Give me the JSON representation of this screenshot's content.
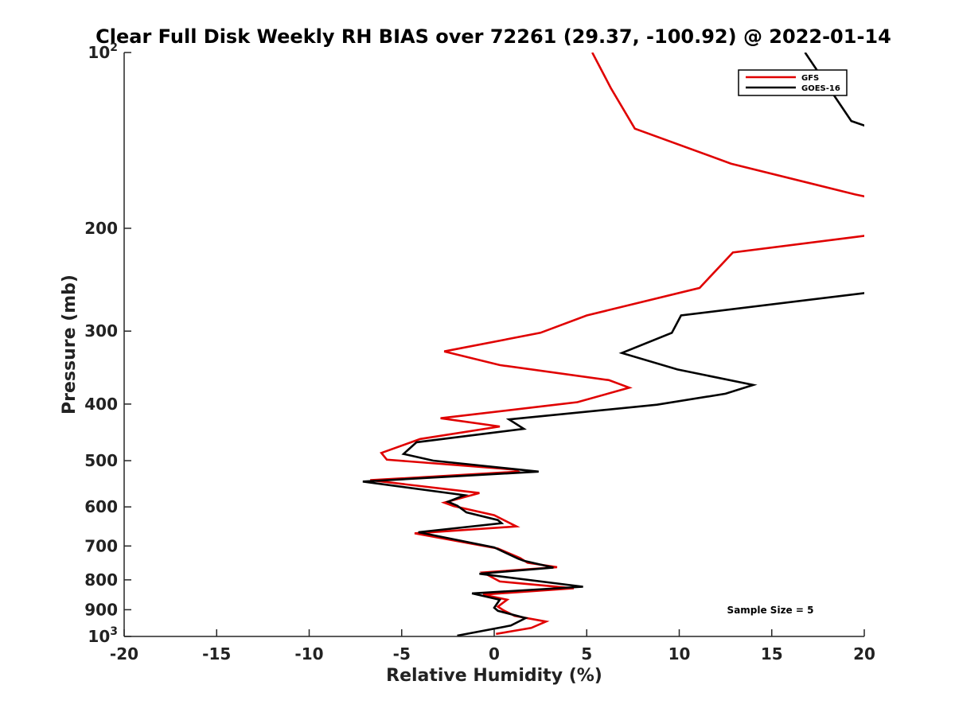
{
  "chart_data": {
    "type": "line",
    "title": "Clear Full Disk Weekly RH BIAS over 72261 (29.37, -100.92) @ 2022-01-14",
    "xlabel": "Relative Humidity (%)",
    "ylabel": "Pressure (mb)",
    "xlim": [
      -20,
      20
    ],
    "ylim": [
      100,
      1000
    ],
    "y_scale": "log",
    "y_reversed": true,
    "grid": false,
    "legend_position": "top-right",
    "x_ticks": [
      "-20",
      "-15",
      "-10",
      "-5",
      "0",
      "5",
      "10",
      "15",
      "20"
    ],
    "x_tick_values": [
      -20,
      -15,
      -10,
      -5,
      0,
      5,
      10,
      15,
      20
    ],
    "y_ticks": [
      {
        "value": 100,
        "base": "10",
        "exp": "2"
      },
      {
        "value": 200,
        "label": "200"
      },
      {
        "value": 300,
        "label": "300"
      },
      {
        "value": 400,
        "label": "400"
      },
      {
        "value": 500,
        "label": "500"
      },
      {
        "value": 600,
        "label": "600"
      },
      {
        "value": 700,
        "label": "700"
      },
      {
        "value": 800,
        "label": "800"
      },
      {
        "value": 900,
        "label": "900"
      },
      {
        "value": 1000,
        "base": "10",
        "exp": "3"
      }
    ],
    "annotation": "Sample Size = 5",
    "series": [
      {
        "name": "GFS",
        "color": "#e00000",
        "points": [
          [
            5.3,
            100
          ],
          [
            6.3,
            115
          ],
          [
            7.6,
            135
          ],
          [
            12.8,
            155
          ],
          [
            19.5,
            175
          ],
          [
            20.6,
            178
          ],
          [
            20.6,
            205
          ],
          [
            19.5,
            207
          ],
          [
            12.9,
            220
          ],
          [
            11.1,
            253
          ],
          [
            5.0,
            282
          ],
          [
            2.5,
            302
          ],
          [
            -2.7,
            325
          ],
          [
            0.3,
            343
          ],
          [
            6.2,
            364
          ],
          [
            7.3,
            375
          ],
          [
            4.5,
            397
          ],
          [
            -2.9,
            423
          ],
          [
            0.3,
            437
          ],
          [
            -4.0,
            459
          ],
          [
            -6.1,
            485
          ],
          [
            -5.8,
            498
          ],
          [
            1.1,
            518
          ],
          [
            1.3,
            522
          ],
          [
            -6.7,
            540
          ],
          [
            -0.8,
            568
          ],
          [
            -2.7,
            590
          ],
          [
            -2.2,
            598
          ],
          [
            0.0,
            620
          ],
          [
            1.2,
            648
          ],
          [
            -4.3,
            666
          ],
          [
            0.2,
            707
          ],
          [
            1.4,
            734
          ],
          [
            1.8,
            748
          ],
          [
            3.4,
            761
          ],
          [
            -0.6,
            777
          ],
          [
            0.3,
            805
          ],
          [
            4.3,
            827
          ],
          [
            -0.6,
            848
          ],
          [
            0.7,
            865
          ],
          [
            0.2,
            889
          ],
          [
            0.5,
            902
          ],
          [
            1.1,
            922
          ],
          [
            2.8,
            943
          ],
          [
            2.0,
            967
          ],
          [
            0.1,
            990
          ]
        ]
      },
      {
        "name": "GOES-16",
        "color": "#000000",
        "points": [
          [
            16.8,
            100
          ],
          [
            19.3,
            131
          ],
          [
            20.2,
            134
          ],
          [
            20.1,
            258
          ],
          [
            10.1,
            282
          ],
          [
            9.6,
            302
          ],
          [
            6.9,
            327
          ],
          [
            9.9,
            349
          ],
          [
            14.0,
            371
          ],
          [
            12.5,
            384
          ],
          [
            8.8,
            401
          ],
          [
            0.8,
            425
          ],
          [
            1.6,
            441
          ],
          [
            -4.2,
            465
          ],
          [
            -4.9,
            487
          ],
          [
            -3.3,
            500
          ],
          [
            2.4,
            522
          ],
          [
            -7.1,
            543
          ],
          [
            -1.6,
            573
          ],
          [
            -2.5,
            588
          ],
          [
            -2.0,
            597
          ],
          [
            -1.5,
            613
          ],
          [
            0.2,
            632
          ],
          [
            0.4,
            640
          ],
          [
            -4.1,
            663
          ],
          [
            0.0,
            704
          ],
          [
            1.3,
            736
          ],
          [
            1.6,
            742
          ],
          [
            3.2,
            762
          ],
          [
            -0.8,
            781
          ],
          [
            4.8,
            822
          ],
          [
            -1.2,
            844
          ],
          [
            0.3,
            865
          ],
          [
            0.0,
            893
          ],
          [
            0.2,
            904
          ],
          [
            1.7,
            930
          ],
          [
            0.9,
            958
          ],
          [
            -2.0,
            997
          ]
        ]
      }
    ]
  }
}
